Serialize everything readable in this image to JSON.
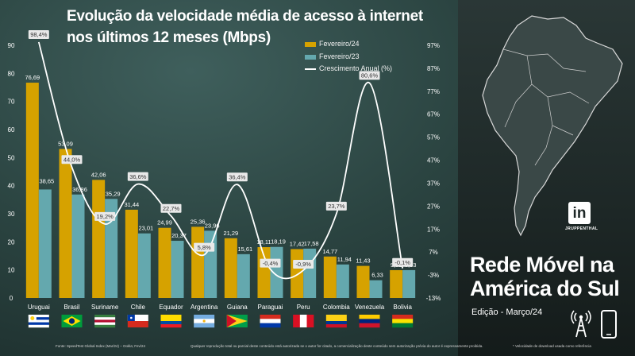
{
  "title_line1": "Evolução da velocidade média de acesso à internet",
  "title_line2": "nos últimos 12 meses (Mbps)",
  "legend": {
    "feb24": "Fevereiro/24",
    "feb23": "Fevereiro/23",
    "growth": "Crescimento Anual (%)"
  },
  "colors": {
    "feb24": "#d6a200",
    "feb23": "#64a8ae",
    "line": "#ffffff"
  },
  "panel": {
    "title_line1": "Rede Móvel na",
    "title_line2": "América do Sul",
    "edition": "Edição - Março/24",
    "linkedin_logo": "in",
    "linkedin_name": "JRUPPENTHAL"
  },
  "footer": {
    "source": "Fonte: SpeedTest Global Index (Mar/24) – Ookla; Fev/24",
    "notice": "Qualquer reprodução total ou parcial deste conteúdo está autorizada se o autor for citado, a comercialização deste conteúdo sem autorização prévia do autor é expressamente proibida.",
    "note": "* Velocidade de download usada como referência"
  },
  "icons": {
    "map": "south-america-map-icon",
    "tower": "antenna-tower-icon",
    "phone": "smartphone-icon",
    "linkedin": "linkedin-icon"
  },
  "chart_data": {
    "type": "bar",
    "categories": [
      "Uruguai",
      "Brasil",
      "Suriname",
      "Chile",
      "Equador",
      "Argentina",
      "Guiana",
      "Paraguai",
      "Peru",
      "Colombia",
      "Venezuela",
      "Bolivia"
    ],
    "series": [
      {
        "name": "Fevereiro/24",
        "values": [
          76.69,
          53.09,
          42.06,
          31.44,
          24.99,
          25.36,
          21.29,
          18.11,
          17.42,
          14.77,
          11.43,
          9.92
        ]
      },
      {
        "name": "Fevereiro/23",
        "values": [
          38.65,
          36.86,
          35.29,
          23.01,
          20.37,
          23.96,
          15.61,
          18.19,
          17.58,
          11.94,
          6.33,
          9.93
        ]
      },
      {
        "name": "Crescimento Anual (%)",
        "type": "line",
        "axis": "right",
        "values": [
          98.4,
          44.0,
          19.2,
          36.6,
          22.7,
          5.8,
          36.4,
          -0.4,
          -0.9,
          23.7,
          80.6,
          -0.1
        ]
      }
    ],
    "bar_labels": {
      "feb24": [
        "76,69",
        "53,09",
        "42,06",
        "31,44",
        "24,99",
        "25,36",
        "21,29",
        "18,11",
        "17,42",
        "14,77",
        "11,43",
        "9,92"
      ],
      "feb23": [
        "38,65",
        "36,86",
        "35,29",
        "23,01",
        "20,37",
        "23,96",
        "15,61",
        "18,19",
        "17,58",
        "11,94",
        "6,33",
        "9,93"
      ],
      "growth": [
        "98,4%",
        "44,0%",
        "19,2%",
        "36,6%",
        "22,7%",
        "5,8%",
        "36,4%",
        "-0,4%",
        "-0,9%",
        "23,7%",
        "80,6%",
        "-0,1%"
      ]
    },
    "left_axis": {
      "ylim": [
        0,
        90
      ],
      "ticks": [
        "0",
        "10",
        "20",
        "30",
        "40",
        "50",
        "60",
        "70",
        "80",
        "90"
      ]
    },
    "right_axis": {
      "ylim": [
        -13,
        97
      ],
      "ticks": [
        "-13%",
        "-3%",
        "7%",
        "17%",
        "27%",
        "37%",
        "47%",
        "57%",
        "67%",
        "77%",
        "87%",
        "97%"
      ]
    },
    "flags": [
      "flag-uruguay",
      "flag-brazil",
      "flag-suriname",
      "flag-chile",
      "flag-ecuador",
      "flag-argentina",
      "flag-guyana",
      "flag-paraguay",
      "flag-peru",
      "flag-colombia",
      "flag-venezuela",
      "flag-bolivia"
    ]
  }
}
